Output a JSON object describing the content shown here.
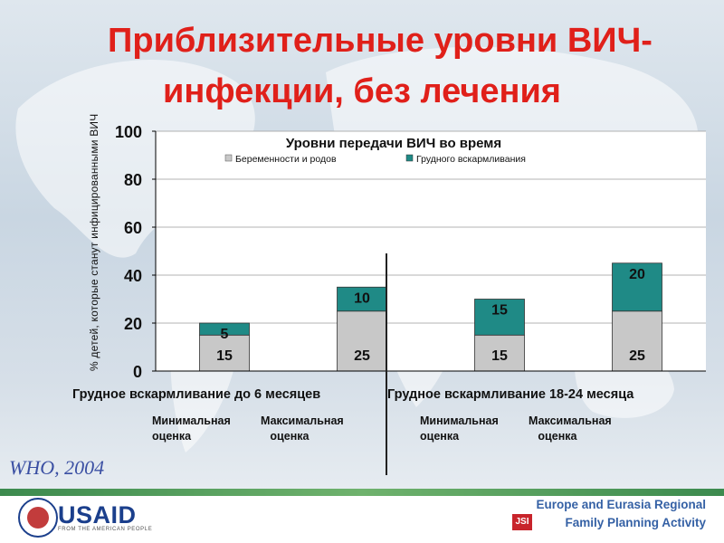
{
  "title_line1": "Приблизительные уровни ВИЧ-",
  "title_line2": "инфекции, без лечения",
  "source": "WHO, 2004",
  "footer": {
    "usaid": "USAID",
    "usaid_sub": "FROM THE AMERICAN PEOPLE",
    "org_line1": "Europe and Eurasia Regional",
    "org_line2": "Family Planning Activity",
    "jsi": "JSI"
  },
  "colors": {
    "pregnancy": "#c8c8c8",
    "breastfeeding": "#1f8a86",
    "title": "#e0201a",
    "plot_bg": "#ffffff"
  },
  "chart_data": {
    "type": "bar",
    "stacked": true,
    "title": "Уровни передачи ВИЧ во время",
    "ylabel": "% детей, которые станут инфицированными ВИЧ",
    "ylim": [
      0,
      100
    ],
    "yticks": [
      "0",
      "20",
      "40",
      "60",
      "80",
      "100"
    ],
    "grid": true,
    "legend_position": "top",
    "groups": [
      {
        "label": "Грудное вскармливание до 6 месяцев",
        "categories": [
          "Минимальная\nоценка",
          "Максимальная\n   оценка"
        ]
      },
      {
        "label": "Грудное вскармливание 18-24 месяца",
        "categories": [
          "Минимальная\nоценка",
          "Максимальная\n   оценка"
        ]
      }
    ],
    "series": [
      {
        "name": "Беременности и родов",
        "values": [
          15,
          25,
          15,
          25
        ],
        "labels": [
          "15",
          "25",
          "15",
          "25"
        ]
      },
      {
        "name": "Грудного вскармливания",
        "values": [
          5,
          10,
          15,
          20
        ],
        "labels": [
          "5",
          "10",
          "15",
          "20"
        ]
      }
    ]
  }
}
